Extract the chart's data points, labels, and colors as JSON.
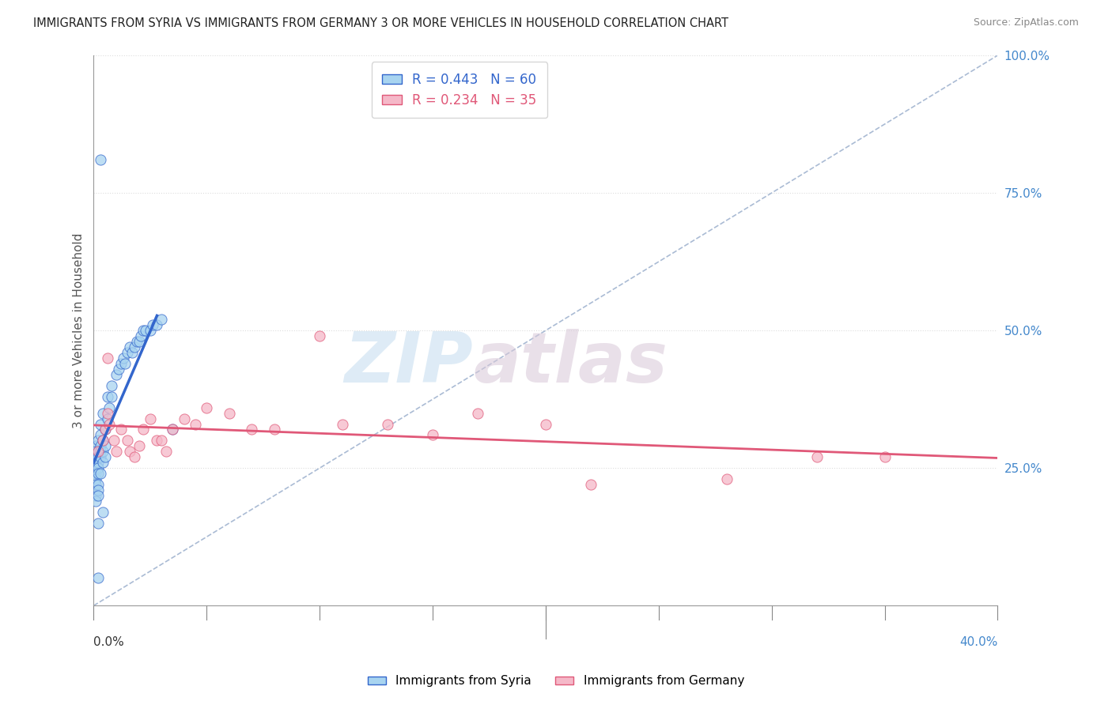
{
  "title": "IMMIGRANTS FROM SYRIA VS IMMIGRANTS FROM GERMANY 3 OR MORE VEHICLES IN HOUSEHOLD CORRELATION CHART",
  "source": "Source: ZipAtlas.com",
  "ylabel": "3 or more Vehicles in Household",
  "xmin": 0.0,
  "xmax": 0.4,
  "ymin": 0.0,
  "ymax": 1.0,
  "legend_syria": "Immigrants from Syria",
  "legend_germany": "Immigrants from Germany",
  "R_syria": 0.443,
  "N_syria": 60,
  "R_germany": 0.234,
  "N_germany": 35,
  "color_syria": "#a8d4f0",
  "color_germany": "#f5b8c8",
  "color_syria_line": "#3366cc",
  "color_germany_line": "#e05878",
  "color_diag": "#aabbd4",
  "watermark_zip": "ZIP",
  "watermark_atlas": "atlas",
  "syria_x": [
    0.001,
    0.001,
    0.001,
    0.001,
    0.001,
    0.001,
    0.001,
    0.001,
    0.001,
    0.001,
    0.002,
    0.002,
    0.002,
    0.002,
    0.002,
    0.002,
    0.002,
    0.002,
    0.002,
    0.003,
    0.003,
    0.003,
    0.003,
    0.003,
    0.003,
    0.004,
    0.004,
    0.004,
    0.004,
    0.005,
    0.005,
    0.005,
    0.006,
    0.006,
    0.007,
    0.008,
    0.008,
    0.01,
    0.011,
    0.012,
    0.013,
    0.014,
    0.015,
    0.016,
    0.017,
    0.018,
    0.019,
    0.02,
    0.021,
    0.022,
    0.023,
    0.025,
    0.026,
    0.028,
    0.03,
    0.003,
    0.002,
    0.004,
    0.035,
    0.002
  ],
  "syria_y": [
    0.27,
    0.29,
    0.26,
    0.28,
    0.25,
    0.24,
    0.23,
    0.22,
    0.2,
    0.19,
    0.28,
    0.3,
    0.27,
    0.26,
    0.25,
    0.24,
    0.22,
    0.21,
    0.2,
    0.29,
    0.31,
    0.28,
    0.27,
    0.24,
    0.33,
    0.3,
    0.28,
    0.26,
    0.35,
    0.32,
    0.29,
    0.27,
    0.38,
    0.34,
    0.36,
    0.4,
    0.38,
    0.42,
    0.43,
    0.44,
    0.45,
    0.44,
    0.46,
    0.47,
    0.46,
    0.47,
    0.48,
    0.48,
    0.49,
    0.5,
    0.5,
    0.5,
    0.51,
    0.51,
    0.52,
    0.81,
    0.15,
    0.17,
    0.32,
    0.05
  ],
  "germany_x": [
    0.002,
    0.004,
    0.005,
    0.006,
    0.007,
    0.009,
    0.01,
    0.012,
    0.015,
    0.016,
    0.018,
    0.02,
    0.022,
    0.025,
    0.028,
    0.03,
    0.032,
    0.035,
    0.04,
    0.045,
    0.05,
    0.06,
    0.07,
    0.08,
    0.1,
    0.11,
    0.13,
    0.15,
    0.17,
    0.2,
    0.22,
    0.28,
    0.32,
    0.35,
    0.006
  ],
  "germany_y": [
    0.28,
    0.3,
    0.32,
    0.35,
    0.33,
    0.3,
    0.28,
    0.32,
    0.3,
    0.28,
    0.27,
    0.29,
    0.32,
    0.34,
    0.3,
    0.3,
    0.28,
    0.32,
    0.34,
    0.33,
    0.36,
    0.35,
    0.32,
    0.32,
    0.49,
    0.33,
    0.33,
    0.31,
    0.35,
    0.33,
    0.22,
    0.23,
    0.27,
    0.27,
    0.45
  ]
}
